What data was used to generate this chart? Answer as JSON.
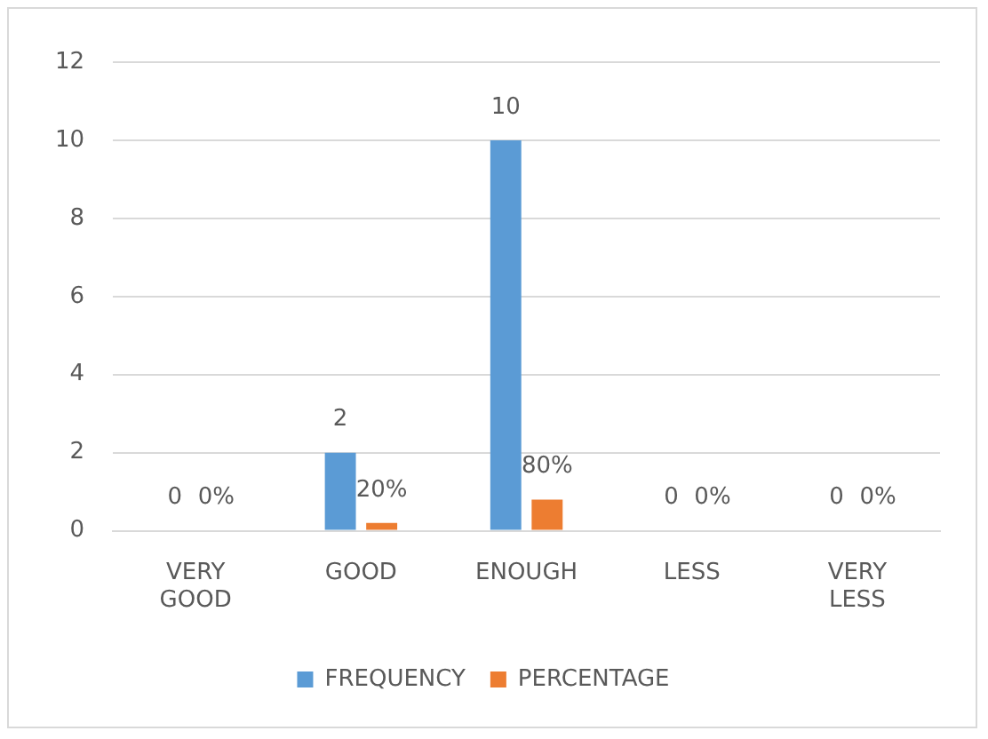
{
  "chart_data": {
    "type": "bar",
    "categories": [
      "VERY GOOD",
      "GOOD",
      "ENOUGH",
      "LESS",
      "VERY LESS"
    ],
    "series": [
      {
        "name": "FREQUENCY",
        "color": "#5b9bd5",
        "values": [
          0,
          2,
          10,
          0,
          0
        ],
        "value_labels": [
          "0",
          "2",
          "10",
          "0",
          "0"
        ]
      },
      {
        "name": "PERCENTAGE",
        "color": "#ed7d31",
        "values": [
          0,
          0.2,
          0.8,
          0,
          0
        ],
        "value_labels": [
          "0%",
          "20%",
          "80%",
          "0%",
          "0%"
        ]
      }
    ],
    "ylim": [
      0,
      12
    ],
    "yticks": [
      0,
      2,
      4,
      6,
      8,
      10,
      12
    ],
    "grid": "y",
    "legend": "bottom"
  }
}
